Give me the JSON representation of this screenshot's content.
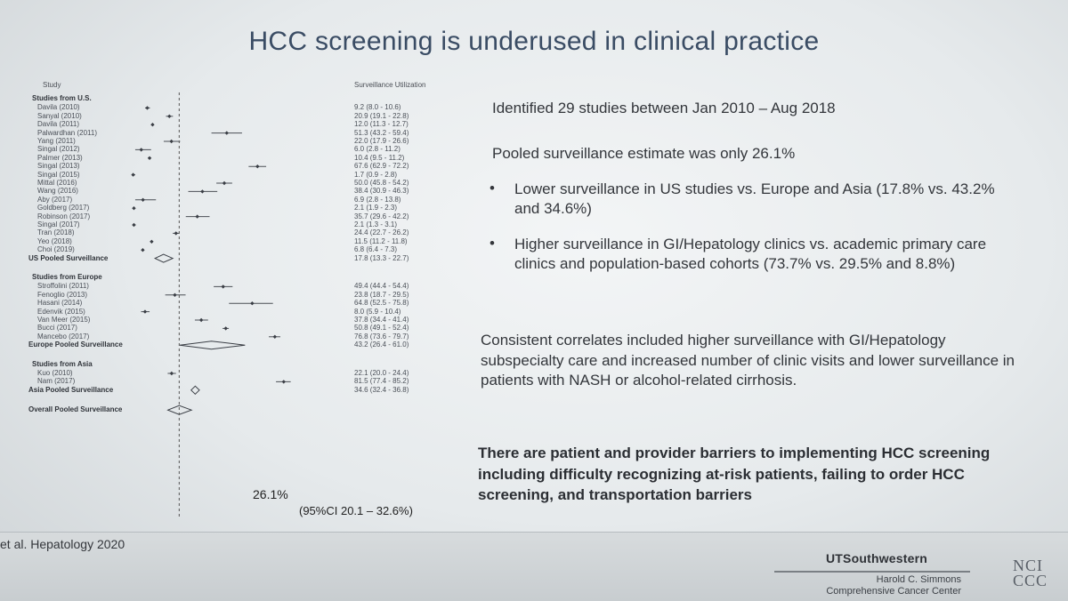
{
  "title": "HCC screening is underused in clinical practice",
  "forest": {
    "col_study": "Study",
    "col_util": "Surveillance Utilization",
    "rows": [
      {
        "type": "section",
        "label": "Studies from U.S."
      },
      {
        "type": "study",
        "label": "Davila (2010)",
        "value": "9.2 (8.0 - 10.6)",
        "est": 9.2,
        "lo": 8.0,
        "hi": 10.6
      },
      {
        "type": "study",
        "label": "Sanyal (2010)",
        "value": "20.9 (19.1 - 22.8)",
        "est": 20.9,
        "lo": 19.1,
        "hi": 22.8
      },
      {
        "type": "study",
        "label": "Davila (2011)",
        "value": "12.0 (11.3 - 12.7)",
        "est": 12.0,
        "lo": 11.3,
        "hi": 12.7
      },
      {
        "type": "study",
        "label": "Palwardhan (2011)",
        "value": "51.3 (43.2 - 59.4)",
        "est": 51.3,
        "lo": 43.2,
        "hi": 59.4
      },
      {
        "type": "study",
        "label": "Yang (2011)",
        "value": "22.0 (17.9 - 26.6)",
        "est": 22.0,
        "lo": 17.9,
        "hi": 26.6
      },
      {
        "type": "study",
        "label": "Singal (2012)",
        "value": "6.0 (2.8 - 11.2)",
        "est": 6.0,
        "lo": 2.8,
        "hi": 11.2
      },
      {
        "type": "study",
        "label": "Palmer (2013)",
        "value": "10.4 (9.5 - 11.2)",
        "est": 10.4,
        "lo": 9.5,
        "hi": 11.2
      },
      {
        "type": "study",
        "label": "Singal (2013)",
        "value": "67.6 (62.9 - 72.2)",
        "est": 67.6,
        "lo": 62.9,
        "hi": 72.2
      },
      {
        "type": "study",
        "label": "Singal (2015)",
        "value": "1.7 (0.9 - 2.8)",
        "est": 1.7,
        "lo": 0.9,
        "hi": 2.8
      },
      {
        "type": "study",
        "label": "Mittal (2016)",
        "value": "50.0 (45.8 - 54.2)",
        "est": 50.0,
        "lo": 45.8,
        "hi": 54.2
      },
      {
        "type": "study",
        "label": "Wang (2016)",
        "value": "38.4 (30.9 - 46.3)",
        "est": 38.4,
        "lo": 30.9,
        "hi": 46.3
      },
      {
        "type": "study",
        "label": "Aby (2017)",
        "value": "6.9 (2.8 - 13.8)",
        "est": 6.9,
        "lo": 2.8,
        "hi": 13.8
      },
      {
        "type": "study",
        "label": "Goldberg (2017)",
        "value": "2.1 (1.9 - 2.3)",
        "est": 2.1,
        "lo": 1.9,
        "hi": 2.3
      },
      {
        "type": "study",
        "label": "Robinson (2017)",
        "value": "35.7 (29.6 - 42.2)",
        "est": 35.7,
        "lo": 29.6,
        "hi": 42.2
      },
      {
        "type": "study",
        "label": "Singal (2017)",
        "value": "2.1 (1.3 - 3.1)",
        "est": 2.1,
        "lo": 1.3,
        "hi": 3.1
      },
      {
        "type": "study",
        "label": "Tran (2018)",
        "value": "24.4 (22.7 - 26.2)",
        "est": 24.4,
        "lo": 22.7,
        "hi": 26.2
      },
      {
        "type": "study",
        "label": "Yeo (2018)",
        "value": "11.5 (11.2 - 11.8)",
        "est": 11.5,
        "lo": 11.2,
        "hi": 11.8
      },
      {
        "type": "study",
        "label": "Choi (2019)",
        "value": "6.8 (6.4 - 7.3)",
        "est": 6.8,
        "lo": 6.4,
        "hi": 7.3
      },
      {
        "type": "pooled",
        "label": "US Pooled Surveillance",
        "value": "17.8 (13.3 - 22.7)",
        "est": 17.8,
        "lo": 13.3,
        "hi": 22.7
      },
      {
        "type": "gap"
      },
      {
        "type": "section",
        "label": "Studies from Europe"
      },
      {
        "type": "study",
        "label": "Stroffolini (2011)",
        "value": "49.4 (44.4 - 54.4)",
        "est": 49.4,
        "lo": 44.4,
        "hi": 54.4
      },
      {
        "type": "study",
        "label": "Fenoglio (2013)",
        "value": "23.8 (18.7 - 29.5)",
        "est": 23.8,
        "lo": 18.7,
        "hi": 29.5
      },
      {
        "type": "study",
        "label": "Hasani (2014)",
        "value": "64.8 (52.5 - 75.8)",
        "est": 64.8,
        "lo": 52.5,
        "hi": 75.8
      },
      {
        "type": "study",
        "label": "Edenvik (2015)",
        "value": "8.0 (5.9 - 10.4)",
        "est": 8.0,
        "lo": 5.9,
        "hi": 10.4
      },
      {
        "type": "study",
        "label": "Van Meer (2015)",
        "value": "37.8 (34.4 - 41.4)",
        "est": 37.8,
        "lo": 34.4,
        "hi": 41.4
      },
      {
        "type": "study",
        "label": "Bucci (2017)",
        "value": "50.8 (49.1 - 52.4)",
        "est": 50.8,
        "lo": 49.1,
        "hi": 52.4
      },
      {
        "type": "study",
        "label": "Mancebo (2017)",
        "value": "76.8 (73.6 - 79.7)",
        "est": 76.8,
        "lo": 73.6,
        "hi": 79.7
      },
      {
        "type": "pooled",
        "label": "Europe Pooled Surveillance",
        "value": "43.2 (26.4 - 61.0)",
        "est": 43.2,
        "lo": 26.4,
        "hi": 61.0
      },
      {
        "type": "gap"
      },
      {
        "type": "section",
        "label": "Studies from Asia"
      },
      {
        "type": "study",
        "label": "Kuo (2010)",
        "value": "22.1 (20.0 - 24.4)",
        "est": 22.1,
        "lo": 20.0,
        "hi": 24.4
      },
      {
        "type": "study",
        "label": "Nam (2017)",
        "value": "81.5 (77.4 - 85.2)",
        "est": 81.5,
        "lo": 77.4,
        "hi": 85.2
      },
      {
        "type": "pooled",
        "label": "Asia Pooled Surveillance",
        "value": "34.6 (32.4 - 36.8)",
        "est": 34.6,
        "lo": 32.4,
        "hi": 36.8
      },
      {
        "type": "gap"
      },
      {
        "type": "overall",
        "label": "Overall Pooled Surveillance",
        "est": 26.1,
        "lo": 20.1,
        "hi": 32.6
      }
    ],
    "overall_pct": "26.1%",
    "overall_ci": "(95%CI 20.1 – 32.6%)"
  },
  "text": {
    "t1": "Identified 29 studies between Jan 2010 – Aug 2018",
    "t2": "Pooled surveillance estimate was only 26.1%",
    "bullet1": "Lower surveillance in US studies vs. Europe and Asia (17.8% vs. 43.2% and 34.6%)",
    "bullet2": "Higher surveillance in GI/Hepatology clinics vs. academic primary care clinics and population-based cohorts (73.7% vs. 29.5% and 8.8%)",
    "t3": "Consistent correlates included higher surveillance with GI/Hepatology subspecialty care and increased number of clinic visits and lower surveillance in patients with NASH or alcohol-related cirrhosis.",
    "t4": "There are patient and provider barriers to implementing HCC screening including difficulty recognizing at-risk patients, failing to order HCC screening, and transportation barriers"
  },
  "footer": {
    "citation": "et al. Hepatology 2020",
    "logo_main": "UTSouthwestern",
    "logo_line1": "Harold C. Simmons",
    "logo_line2": "Comprehensive Cancer Center",
    "nci_1": "NCI",
    "nci_2": "CCC"
  }
}
